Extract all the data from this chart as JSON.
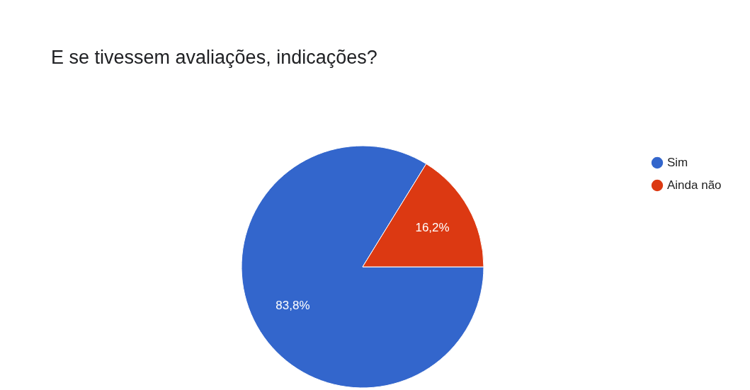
{
  "chart_data": {
    "type": "pie",
    "title": "E se tivessem avaliações, indicações?",
    "categories": [
      "Sim",
      "Ainda não"
    ],
    "values": [
      83.8,
      16.2
    ],
    "colors": [
      "#3366cc",
      "#dc3912"
    ],
    "value_labels": [
      "83,8%",
      "16,2%"
    ],
    "legend": "right"
  }
}
